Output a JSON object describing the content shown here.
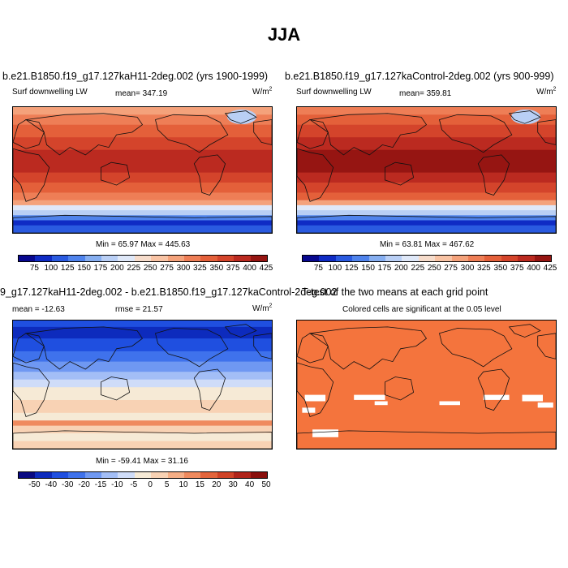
{
  "title": "JJA",
  "panels": {
    "case": {
      "title": "b.e21.B1850.f19_g17.127kaH11-2deg.002 (yrs 1900-1999)",
      "variable": "Surf downwelling LW",
      "mean": "mean= 347.19",
      "units": "W/m",
      "units_exp": "2",
      "minmax": "Min =  65.97 Max = 445.63",
      "colorbar_labels": [
        "75",
        "100",
        "125",
        "150",
        "175",
        "200",
        "225",
        "250",
        "275",
        "300",
        "325",
        "350",
        "375",
        "400",
        "425"
      ]
    },
    "control": {
      "title": "b.e21.B1850.f19_g17.127kaControl-2deg.002 (yrs 900-999)",
      "variable": "Surf downwelling LW",
      "mean": "mean= 359.81",
      "units": "W/m",
      "units_exp": "2",
      "minmax": "Min =  63.81 Max = 467.62",
      "colorbar_labels": [
        "75",
        "100",
        "125",
        "150",
        "175",
        "200",
        "225",
        "250",
        "275",
        "300",
        "325",
        "350",
        "375",
        "400",
        "425"
      ]
    },
    "difference": {
      "title": "9_g17.127kaH11-2deg.002 - b.e21.B1850.f19_g17.127kaControl-2deg.002",
      "mean": "mean = -12.63",
      "rmse": "rmse =  21.57",
      "units": "W/m",
      "units_exp": "2",
      "minmax": "Min = -59.41 Max =  31.16",
      "colorbar_labels": [
        "-50",
        "-40",
        "-30",
        "-20",
        "-15",
        "-10",
        "-5",
        "0",
        "5",
        "10",
        "15",
        "20",
        "30",
        "40",
        "50"
      ]
    },
    "significance": {
      "title": "T-test of the two means at each grid point",
      "subtitle": "Colored cells are significant at the 0.05 level"
    }
  },
  "colors": {
    "abs_scale": [
      "#08088f",
      "#0f2bc4",
      "#2a5ae0",
      "#4f83ec",
      "#86aef0",
      "#b9cff5",
      "#dfe8f8",
      "#f6dccb",
      "#f8c3a4",
      "#f4a27b",
      "#ee7e56",
      "#e4603a",
      "#d4442b",
      "#bb2a20",
      "#961512"
    ],
    "diff_scale": [
      "#0a0a82",
      "#0d2bbd",
      "#1f4fe0",
      "#3f72ec",
      "#6f98f2",
      "#a3bef6",
      "#cfdcf8",
      "#f6ead6",
      "#f8d2b4",
      "#f5ae86",
      "#ef8a5e",
      "#e3653c",
      "#cf4327",
      "#b0241a",
      "#8a0f0c"
    ],
    "significant": "#f4743d"
  }
}
